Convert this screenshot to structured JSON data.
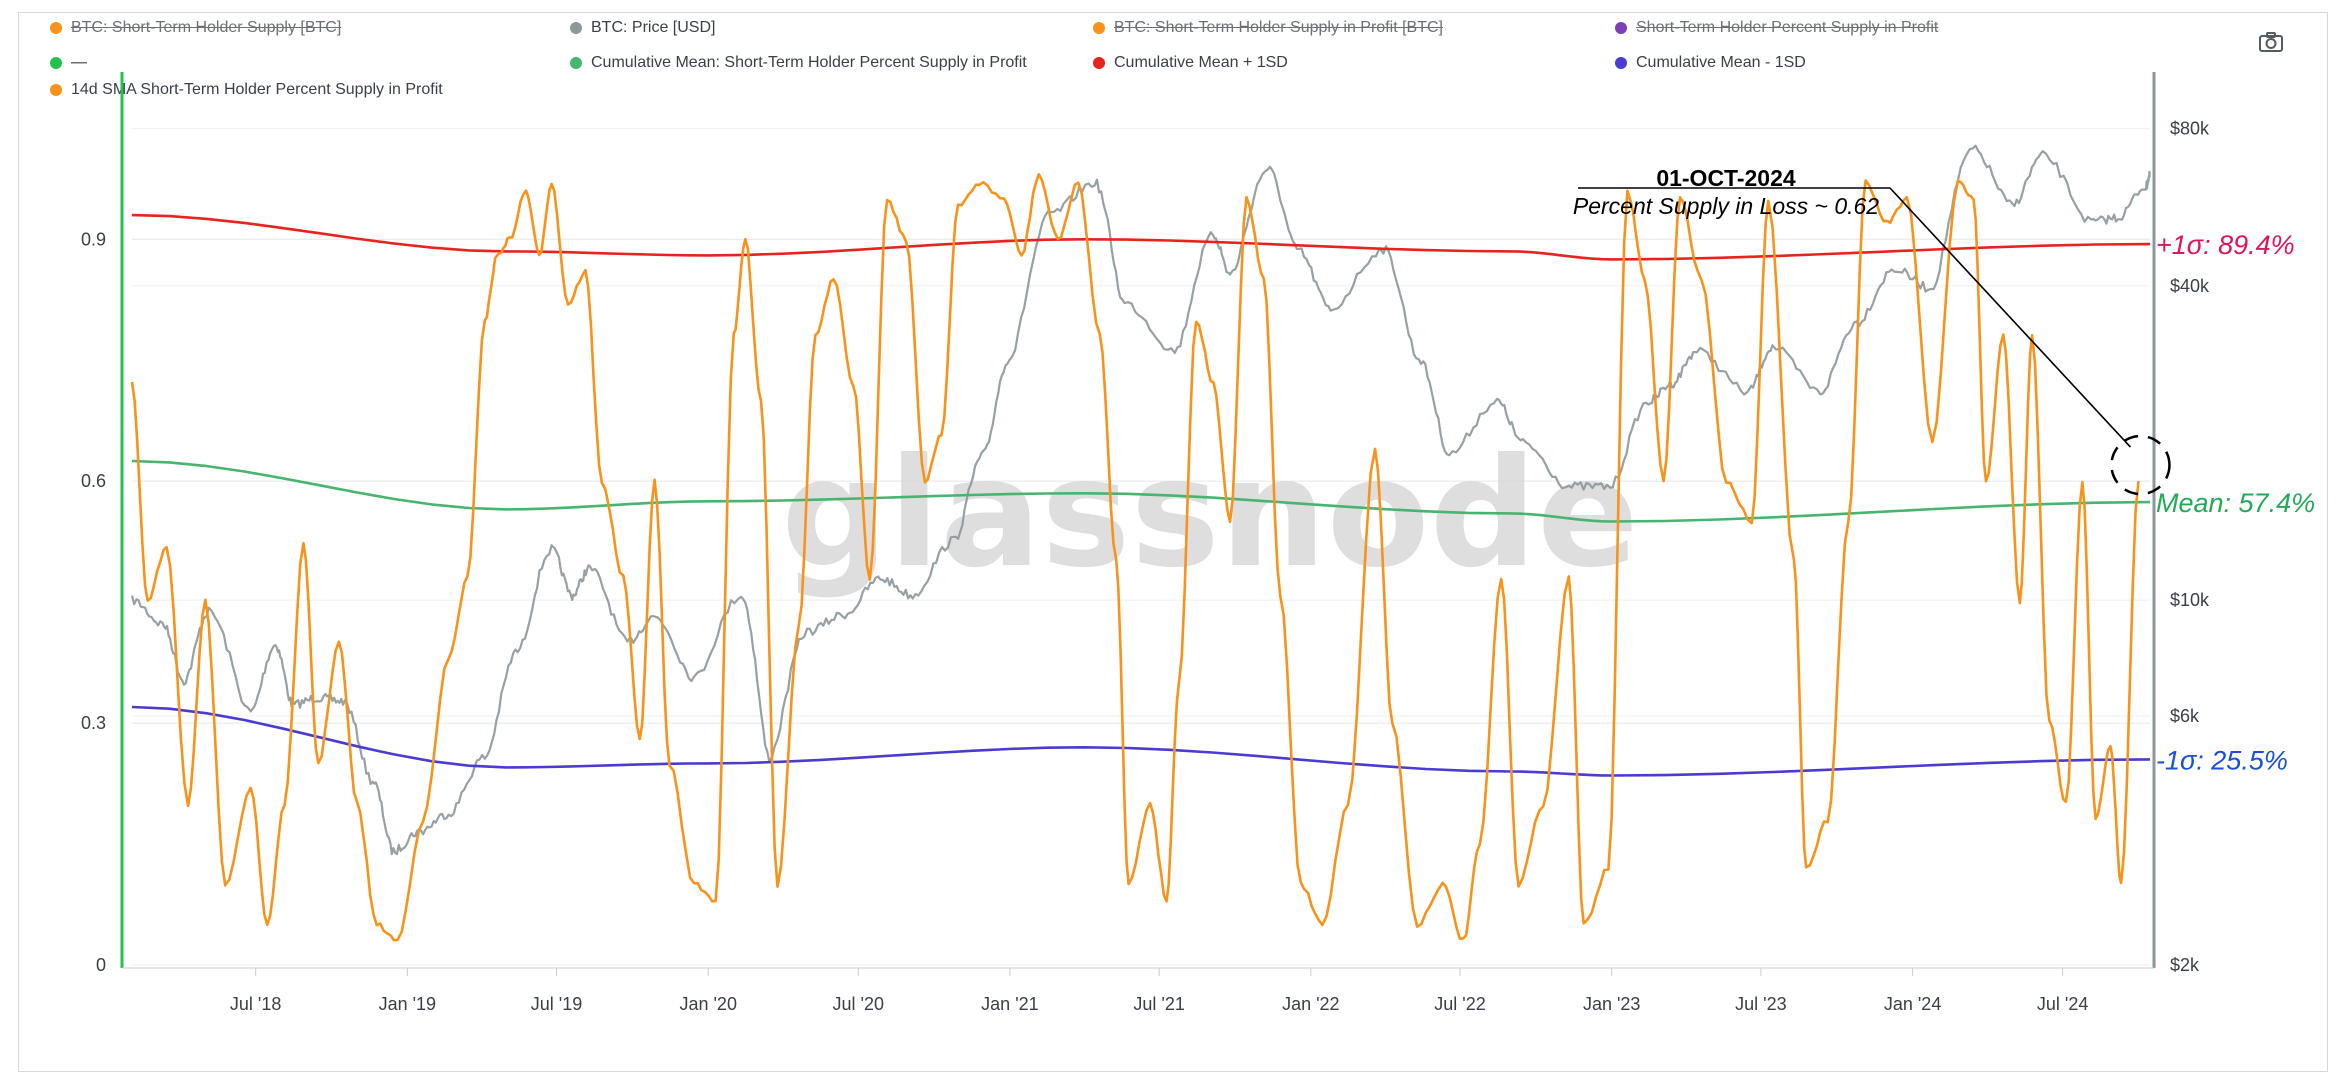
{
  "legend": [
    {
      "label": "BTC: Short-Term Holder Supply [BTC]",
      "color": "#f7931a",
      "hidden": true
    },
    {
      "label": "BTC: Price [USD]",
      "color": "#8c969b",
      "hidden": false
    },
    {
      "label": "BTC: Short-Term Holder Supply in Profit [BTC]",
      "color": "#f7931a",
      "hidden": true
    },
    {
      "label": "Short-Term Holder Percent Supply in Profit",
      "color": "#7b3fb8",
      "hidden": true
    },
    {
      "label": "—",
      "color": "#21c24f",
      "hidden": true
    },
    {
      "label": "Cumulative Mean: Short-Term Holder Percent Supply in Profit",
      "color": "#47b46f",
      "hidden": false
    },
    {
      "label": "Cumulative Mean + 1SD",
      "color": "#e8231f",
      "hidden": false
    },
    {
      "label": "Cumulative Mean - 1SD",
      "color": "#4a3bd1",
      "hidden": false
    },
    {
      "label": "14d SMA Short-Term Holder Percent Supply in Profit",
      "color": "#f7931a",
      "hidden": false
    }
  ],
  "watermark": "glassnode",
  "toolbar": {
    "camera_icon": "camera-icon"
  },
  "colors": {
    "orange": "#f7931a",
    "grey": "#8c969b",
    "red": "#e8231f",
    "green": "#47b46f",
    "blue": "#4a3bd1",
    "axis_green": "#21c24f",
    "axis_right": "#8c969b"
  },
  "chart_data": {
    "type": "line",
    "x_range": [
      "2018-02-01",
      "2024-10-15"
    ],
    "x_ticks": [
      "Jul '18",
      "Jan '19",
      "Jul '19",
      "Jan '20",
      "Jul '20",
      "Jan '21",
      "Jul '21",
      "Jan '22",
      "Jul '22",
      "Jan '23",
      "Jul '23",
      "Jan '24",
      "Jul '24"
    ],
    "y_left": {
      "ticks": [
        "0",
        "0.3",
        "0.6",
        "0.9"
      ],
      "tick_values": [
        0,
        0.3,
        0.6,
        0.9
      ],
      "range": [
        0,
        1.1
      ]
    },
    "y_right": {
      "scale": "log",
      "ticks": [
        "$2k",
        "$6k",
        "$10k",
        "$40k",
        "$80k"
      ],
      "tick_values": [
        2000,
        6000,
        10000,
        40000,
        80000
      ],
      "range": [
        2000,
        100000
      ]
    },
    "series": [
      {
        "name": "14d SMA Short-Term Holder Percent Supply in Profit",
        "axis": "left",
        "color": "#f7931a",
        "points": [
          [
            "2018-02-01",
            0.72
          ],
          [
            "2018-02-20",
            0.45
          ],
          [
            "2018-03-15",
            0.52
          ],
          [
            "2018-04-10",
            0.2
          ],
          [
            "2018-05-01",
            0.45
          ],
          [
            "2018-05-25",
            0.1
          ],
          [
            "2018-06-25",
            0.22
          ],
          [
            "2018-07-15",
            0.05
          ],
          [
            "2018-08-05",
            0.2
          ],
          [
            "2018-08-28",
            0.52
          ],
          [
            "2018-09-15",
            0.25
          ],
          [
            "2018-10-10",
            0.4
          ],
          [
            "2018-11-01",
            0.2
          ],
          [
            "2018-11-25",
            0.05
          ],
          [
            "2018-12-20",
            0.03
          ],
          [
            "2019-01-20",
            0.18
          ],
          [
            "2019-02-20",
            0.38
          ],
          [
            "2019-03-15",
            0.48
          ],
          [
            "2019-04-05",
            0.8
          ],
          [
            "2019-04-20",
            0.88
          ],
          [
            "2019-05-05",
            0.9
          ],
          [
            "2019-05-25",
            0.96
          ],
          [
            "2019-06-10",
            0.88
          ],
          [
            "2019-06-25",
            0.97
          ],
          [
            "2019-07-15",
            0.82
          ],
          [
            "2019-08-05",
            0.86
          ],
          [
            "2019-08-25",
            0.6
          ],
          [
            "2019-09-20",
            0.48
          ],
          [
            "2019-10-10",
            0.28
          ],
          [
            "2019-10-28",
            0.6
          ],
          [
            "2019-11-15",
            0.25
          ],
          [
            "2019-12-15",
            0.1
          ],
          [
            "2020-01-10",
            0.08
          ],
          [
            "2020-02-01",
            0.78
          ],
          [
            "2020-02-15",
            0.9
          ],
          [
            "2020-03-05",
            0.7
          ],
          [
            "2020-03-25",
            0.1
          ],
          [
            "2020-04-20",
            0.42
          ],
          [
            "2020-05-10",
            0.78
          ],
          [
            "2020-06-01",
            0.85
          ],
          [
            "2020-06-25",
            0.72
          ],
          [
            "2020-07-15",
            0.48
          ],
          [
            "2020-08-05",
            0.95
          ],
          [
            "2020-08-28",
            0.9
          ],
          [
            "2020-09-20",
            0.6
          ],
          [
            "2020-10-10",
            0.66
          ],
          [
            "2020-10-30",
            0.94
          ],
          [
            "2020-11-25",
            0.97
          ],
          [
            "2020-12-25",
            0.95
          ],
          [
            "2021-01-15",
            0.88
          ],
          [
            "2021-02-05",
            0.98
          ],
          [
            "2021-02-28",
            0.9
          ],
          [
            "2021-03-25",
            0.97
          ],
          [
            "2021-04-20",
            0.78
          ],
          [
            "2021-05-10",
            0.5
          ],
          [
            "2021-05-25",
            0.1
          ],
          [
            "2021-06-20",
            0.2
          ],
          [
            "2021-07-10",
            0.08
          ],
          [
            "2021-07-25",
            0.35
          ],
          [
            "2021-08-15",
            0.8
          ],
          [
            "2021-09-05",
            0.72
          ],
          [
            "2021-09-25",
            0.55
          ],
          [
            "2021-10-15",
            0.95
          ],
          [
            "2021-11-05",
            0.85
          ],
          [
            "2021-11-25",
            0.46
          ],
          [
            "2021-12-20",
            0.1
          ],
          [
            "2022-01-15",
            0.05
          ],
          [
            "2022-02-15",
            0.2
          ],
          [
            "2022-03-20",
            0.64
          ],
          [
            "2022-04-10",
            0.3
          ],
          [
            "2022-05-10",
            0.05
          ],
          [
            "2022-06-10",
            0.1
          ],
          [
            "2022-07-05",
            0.03
          ],
          [
            "2022-07-25",
            0.15
          ],
          [
            "2022-08-20",
            0.48
          ],
          [
            "2022-09-10",
            0.1
          ],
          [
            "2022-10-10",
            0.2
          ],
          [
            "2022-11-10",
            0.48
          ],
          [
            "2022-11-28",
            0.05
          ],
          [
            "2022-12-28",
            0.12
          ],
          [
            "2023-01-20",
            0.96
          ],
          [
            "2023-02-10",
            0.85
          ],
          [
            "2023-03-05",
            0.6
          ],
          [
            "2023-03-25",
            0.95
          ],
          [
            "2023-04-20",
            0.85
          ],
          [
            "2023-05-20",
            0.6
          ],
          [
            "2023-06-20",
            0.55
          ],
          [
            "2023-07-10",
            0.95
          ],
          [
            "2023-08-10",
            0.5
          ],
          [
            "2023-08-25",
            0.12
          ],
          [
            "2023-09-20",
            0.18
          ],
          [
            "2023-10-15",
            0.55
          ],
          [
            "2023-11-05",
            0.97
          ],
          [
            "2023-12-01",
            0.92
          ],
          [
            "2023-12-25",
            0.95
          ],
          [
            "2024-01-25",
            0.65
          ],
          [
            "2024-02-25",
            0.97
          ],
          [
            "2024-03-15",
            0.95
          ],
          [
            "2024-03-30",
            0.6
          ],
          [
            "2024-04-20",
            0.78
          ],
          [
            "2024-05-10",
            0.45
          ],
          [
            "2024-05-25",
            0.78
          ],
          [
            "2024-06-15",
            0.3
          ],
          [
            "2024-07-05",
            0.2
          ],
          [
            "2024-07-25",
            0.6
          ],
          [
            "2024-08-10",
            0.18
          ],
          [
            "2024-08-28",
            0.27
          ],
          [
            "2024-09-10",
            0.1
          ],
          [
            "2024-10-01",
            0.6
          ]
        ]
      },
      {
        "name": "BTC: Price [USD]",
        "axis": "right",
        "color": "#8c969b",
        "points": [
          [
            "2018-02-01",
            10000
          ],
          [
            "2018-03-10",
            9000
          ],
          [
            "2018-04-05",
            7000
          ],
          [
            "2018-05-05",
            9500
          ],
          [
            "2018-06-25",
            6100
          ],
          [
            "2018-07-25",
            8200
          ],
          [
            "2018-08-15",
            6300
          ],
          [
            "2018-09-15",
            6500
          ],
          [
            "2018-10-15",
            6400
          ],
          [
            "2018-11-20",
            4500
          ],
          [
            "2018-12-15",
            3300
          ],
          [
            "2019-01-15",
            3600
          ],
          [
            "2019-02-20",
            3900
          ],
          [
            "2019-04-05",
            5000
          ],
          [
            "2019-05-15",
            8000
          ],
          [
            "2019-06-25",
            12500
          ],
          [
            "2019-07-20",
            10200
          ],
          [
            "2019-08-10",
            11500
          ],
          [
            "2019-09-25",
            8300
          ],
          [
            "2019-10-28",
            9300
          ],
          [
            "2019-12-15",
            7100
          ],
          [
            "2020-02-10",
            10200
          ],
          [
            "2020-03-15",
            5000
          ],
          [
            "2020-04-30",
            8700
          ],
          [
            "2020-06-15",
            9400
          ],
          [
            "2020-07-28",
            11000
          ],
          [
            "2020-09-05",
            10200
          ],
          [
            "2020-10-25",
            13000
          ],
          [
            "2020-11-30",
            19000
          ],
          [
            "2020-12-31",
            29000
          ],
          [
            "2021-02-20",
            55000
          ],
          [
            "2021-04-14",
            63000
          ],
          [
            "2021-05-20",
            37000
          ],
          [
            "2021-07-20",
            30000
          ],
          [
            "2021-09-05",
            50000
          ],
          [
            "2021-09-25",
            42000
          ],
          [
            "2021-11-10",
            67000
          ],
          [
            "2021-12-15",
            47000
          ],
          [
            "2022-01-25",
            36000
          ],
          [
            "2022-03-30",
            47000
          ],
          [
            "2022-05-12",
            29000
          ],
          [
            "2022-06-18",
            19000
          ],
          [
            "2022-08-15",
            24000
          ],
          [
            "2022-09-15",
            20000
          ],
          [
            "2022-11-10",
            16500
          ],
          [
            "2022-12-30",
            16500
          ],
          [
            "2023-02-15",
            24000
          ],
          [
            "2023-03-15",
            26000
          ],
          [
            "2023-04-14",
            30000
          ],
          [
            "2023-06-15",
            25000
          ],
          [
            "2023-07-15",
            30500
          ],
          [
            "2023-09-11",
            25000
          ],
          [
            "2023-10-25",
            34000
          ],
          [
            "2023-12-10",
            43000
          ],
          [
            "2024-01-23",
            39500
          ],
          [
            "2024-03-14",
            73000
          ],
          [
            "2024-05-01",
            57000
          ],
          [
            "2024-06-07",
            71000
          ],
          [
            "2024-08-05",
            53000
          ],
          [
            "2024-09-06",
            54000
          ],
          [
            "2024-10-10",
            62000
          ],
          [
            "2024-10-15",
            65000
          ]
        ]
      },
      {
        "name": "Cumulative Mean + 1SD",
        "axis": "left",
        "color": "#e8231f",
        "points": [
          [
            "2018-02-01",
            0.93
          ],
          [
            "2019-05-01",
            0.885
          ],
          [
            "2020-01-01",
            0.88
          ],
          [
            "2021-04-01",
            0.9
          ],
          [
            "2022-09-01",
            0.885
          ],
          [
            "2023-01-01",
            0.875
          ],
          [
            "2024-10-15",
            0.894
          ]
        ],
        "label": "+1σ: 89.4%"
      },
      {
        "name": "Cumulative Mean: Short-Term Holder Percent Supply in Profit",
        "axis": "left",
        "color": "#47b46f",
        "points": [
          [
            "2018-02-01",
            0.625
          ],
          [
            "2019-05-01",
            0.565
          ],
          [
            "2020-01-01",
            0.575
          ],
          [
            "2021-04-01",
            0.585
          ],
          [
            "2022-09-01",
            0.56
          ],
          [
            "2023-01-01",
            0.55
          ],
          [
            "2024-10-15",
            0.574
          ]
        ],
        "label": "Mean: 57.4%"
      },
      {
        "name": "Cumulative Mean - 1SD",
        "axis": "left",
        "color": "#4a3bd1",
        "points": [
          [
            "2018-02-01",
            0.32
          ],
          [
            "2019-05-01",
            0.245
          ],
          [
            "2020-01-01",
            0.25
          ],
          [
            "2021-04-01",
            0.27
          ],
          [
            "2022-09-01",
            0.24
          ],
          [
            "2023-01-01",
            0.235
          ],
          [
            "2024-10-15",
            0.255
          ]
        ],
        "label": "-1σ: 25.5%"
      }
    ],
    "annotation": {
      "title": "01-OCT-2024",
      "text": "Percent Supply in Loss ~ 0.62",
      "date": "2024-10-01",
      "value": 0.62
    }
  }
}
